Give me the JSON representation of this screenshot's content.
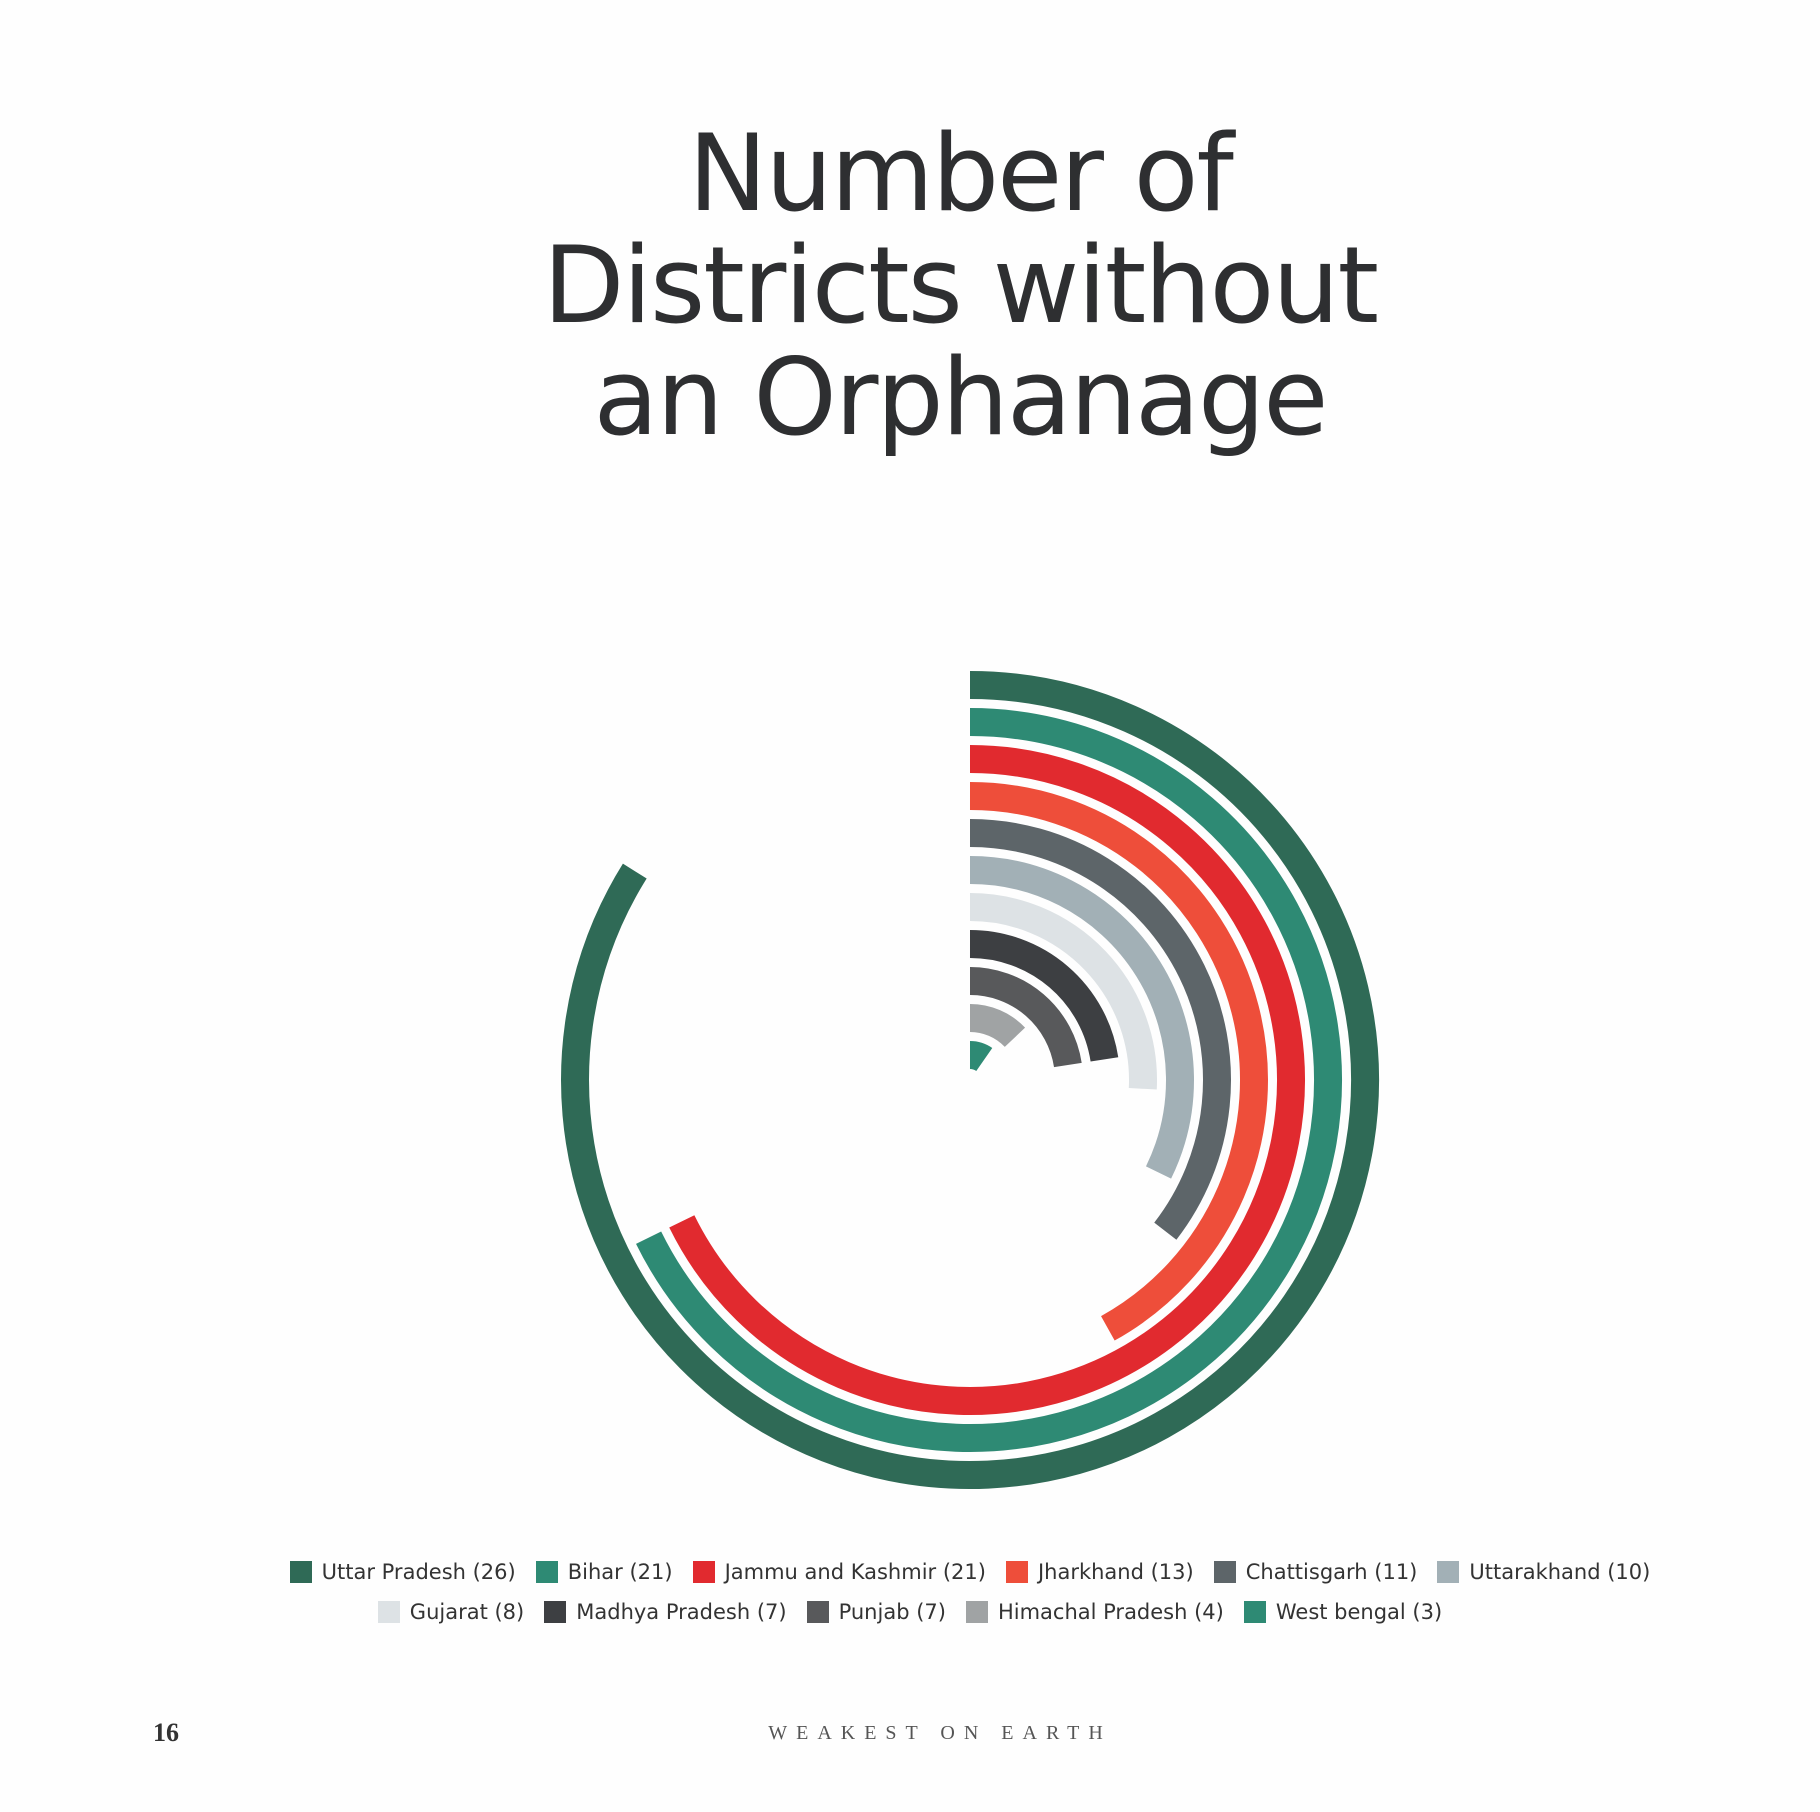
{
  "title_lines": [
    "Number of",
    "Districts without",
    "an Orphanage"
  ],
  "chart_data": {
    "type": "radial-bar",
    "title": "Number of Districts without an Orphanage",
    "series": [
      {
        "name": "Uttar Pradesh",
        "value": 26,
        "color": "#2f6a56"
      },
      {
        "name": "Bihar",
        "value": 21,
        "color": "#2e8a74"
      },
      {
        "name": "Jammu and Kashmir",
        "value": 21,
        "color": "#e12a2f"
      },
      {
        "name": "Jharkhand",
        "value": 13,
        "color": "#ee4e3a"
      },
      {
        "name": "Chattisgarh",
        "value": 11,
        "color": "#5d6569"
      },
      {
        "name": "Uttarakhand",
        "value": 10,
        "color": "#a2b0b6"
      },
      {
        "name": "Gujarat",
        "value": 8,
        "color": "#dde2e5"
      },
      {
        "name": "Madhya Pradesh",
        "value": 7,
        "color": "#3d3f42"
      },
      {
        "name": "Punjab",
        "value": 7,
        "color": "#58595b"
      },
      {
        "name": "Himachal Pradesh",
        "value": 4,
        "color": "#a0a3a4"
      },
      {
        "name": "West bengal",
        "value": 3,
        "color": "#2e8a74"
      }
    ]
  },
  "legend_rows": [
    [
      "Uttar Pradesh (26)",
      "Bihar (21)",
      "Jammu and Kashmir (21)",
      "Jharkhand (13)",
      "Chattisgarh (11)",
      "Uttarakhand (10)"
    ],
    [
      "Gujarat (8)",
      "Madhya Pradesh (7)",
      "Punjab (7)",
      "Himachal Pradesh (4)",
      "West bengal (3)"
    ]
  ],
  "footer": {
    "page_number": "16",
    "publication": "WEAKEST ON EARTH"
  }
}
